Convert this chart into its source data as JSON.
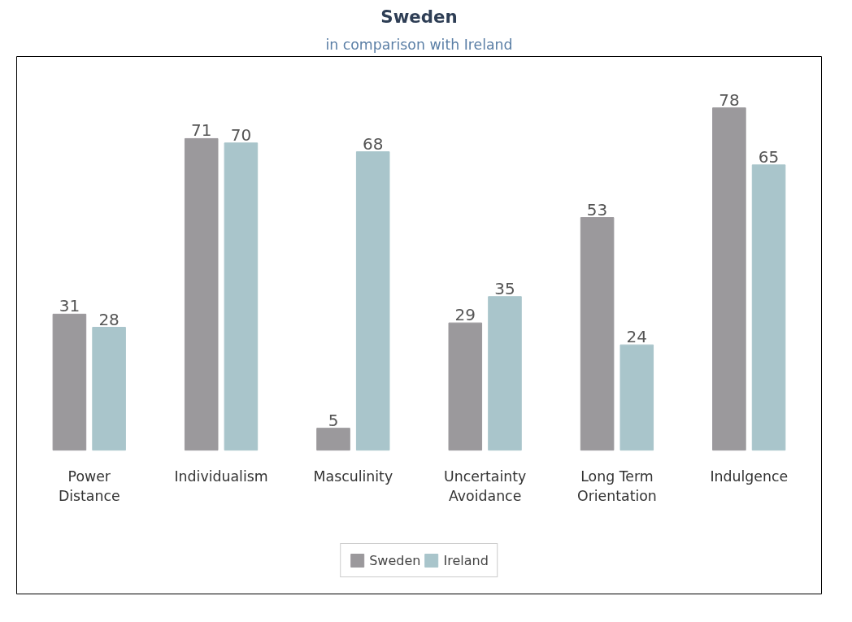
{
  "chart_data": {
    "type": "bar",
    "title": "Sweden",
    "subtitle": "in comparison with Ireland",
    "categories": [
      "Power Distance",
      "Individualism",
      "Masculinity",
      "Uncertainty Avoidance",
      "Long Term Orientation",
      "Indulgence"
    ],
    "series": [
      {
        "name": "Sweden",
        "color": "#9b999c",
        "values": [
          31,
          71,
          5,
          29,
          53,
          78
        ]
      },
      {
        "name": "Ireland",
        "color": "#a9c5cb",
        "values": [
          28,
          70,
          68,
          35,
          24,
          65
        ]
      }
    ],
    "data_labels": true,
    "grid": false,
    "legend": "bottom"
  }
}
